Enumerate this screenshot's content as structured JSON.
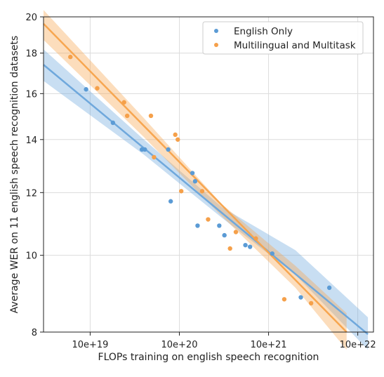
{
  "chart_data": {
    "type": "scatter",
    "title": "",
    "xlabel": "FLOPs training on english speech recognition",
    "ylabel": "Average WER on 11 english speech recognition datasets",
    "x_scale": "log",
    "y_scale": "log",
    "xlim": [
      3e+18,
      1.5e+22
    ],
    "ylim": [
      8,
      20
    ],
    "x_ticks": [
      {
        "value": 1e+19,
        "label": "10e+19"
      },
      {
        "value": 1e+20,
        "label": "10e+20"
      },
      {
        "value": 1e+21,
        "label": "10e+21"
      },
      {
        "value": 1e+22,
        "label": "10e+22"
      }
    ],
    "y_ticks": [
      {
        "value": 8,
        "label": "8"
      },
      {
        "value": 10,
        "label": "10"
      },
      {
        "value": 12,
        "label": "12"
      },
      {
        "value": 14,
        "label": "14"
      },
      {
        "value": 16,
        "label": "16"
      },
      {
        "value": 18,
        "label": "18"
      },
      {
        "value": 20,
        "label": "20"
      }
    ],
    "grid": true,
    "legend_position": "top-right",
    "series": [
      {
        "name": "English Only",
        "color": "#5b9bd5",
        "fit_color": "#6fa8dc",
        "points": [
          [
            9e+18,
            16.2
          ],
          [
            1.8e+19,
            14.7
          ],
          [
            3.8e+19,
            13.6
          ],
          [
            4.1e+19,
            13.6
          ],
          [
            7.5e+19,
            13.6
          ],
          [
            8e+19,
            11.7
          ],
          [
            1.4e+20,
            12.7
          ],
          [
            1.5e+20,
            12.4
          ],
          [
            1.6e+20,
            10.9
          ],
          [
            2.8e+20,
            10.9
          ],
          [
            3.2e+20,
            10.6
          ],
          [
            5.5e+20,
            10.3
          ],
          [
            6.2e+20,
            10.25
          ],
          [
            1.1e+21,
            10.05
          ],
          [
            2.3e+21,
            8.85
          ],
          [
            4.8e+21,
            9.1
          ]
        ],
        "fit": {
          "x": [
            3e+18,
            1.3e+22
          ],
          "y": [
            17.4,
            7.95
          ]
        },
        "band": {
          "x": [
            3e+18,
            4e+19,
            3e+20,
            2e+21,
            1.3e+22
          ],
          "lower": [
            16.6,
            13.4,
            11.15,
            9.45,
            7.6
          ],
          "upper": [
            18.2,
            14.0,
            11.5,
            10.15,
            8.35
          ]
        }
      },
      {
        "name": "Multilingual and Multitask",
        "color": "#f5a04a",
        "fit_color": "#f7a650",
        "points": [
          [
            6e+18,
            17.8
          ],
          [
            1.2e+19,
            16.25
          ],
          [
            2.4e+19,
            15.6
          ],
          [
            2.6e+19,
            15.0
          ],
          [
            4.8e+19,
            15.0
          ],
          [
            5.2e+19,
            13.3
          ],
          [
            9e+19,
            14.2
          ],
          [
            9.6e+19,
            14.0
          ],
          [
            1.05e+20,
            12.05
          ],
          [
            1.8e+20,
            12.05
          ],
          [
            2.1e+20,
            11.1
          ],
          [
            4.3e+20,
            10.7
          ],
          [
            3.7e+20,
            10.2
          ],
          [
            7.2e+20,
            10.5
          ],
          [
            1.5e+21,
            8.8
          ],
          [
            3e+21,
            8.7
          ]
        ],
        "fit": {
          "x": [
            3e+18,
            7.5e+21
          ],
          "y": [
            19.6,
            8.0
          ]
        },
        "band": {
          "x": [
            3e+18,
            4e+19,
            3e+20,
            2e+21,
            7.5e+21
          ],
          "lower": [
            18.7,
            14.1,
            11.2,
            9.1,
            7.6
          ],
          "upper": [
            20.4,
            14.9,
            11.6,
            9.7,
            8.45
          ]
        }
      }
    ]
  }
}
